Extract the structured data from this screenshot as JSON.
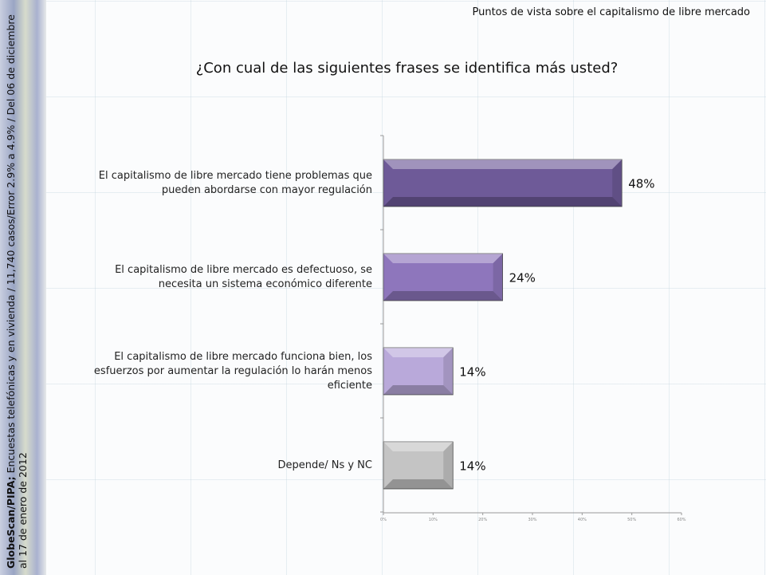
{
  "header": {
    "top_right": "Puntos de vista sobre el capitalismo de libre mercado"
  },
  "sidebar": {
    "source_bold": "GlobeScan/PIPA;",
    "source_text": "Encuestas telefónicas y en vivienda / 11,740  casos/Error 2.9% a 4.9% / Del 06 de diciembre al 17 de enero de 2012"
  },
  "chart_data": {
    "type": "bar",
    "orientation": "horizontal",
    "title": "¿Con cual de las siguientes frases se identifica más usted?",
    "categories": [
      "El capitalismo de libre mercado tiene problemas que pueden abordarse con mayor regulación",
      "El capitalismo de libre mercado es defectuoso, se necesita un sistema económico diferente",
      "El capitalismo de libre mercado funciona bien, los esfuerzos por aumentar la regulación lo harán menos eficiente",
      "Depende/ Ns y NC"
    ],
    "values": [
      48,
      24,
      14,
      14
    ],
    "data_labels": [
      "48%",
      "24%",
      "14%",
      "14%"
    ],
    "xlim": [
      0,
      60
    ],
    "x_ticks": [
      "0%",
      "10%",
      "20%",
      "30%",
      "40%",
      "50%",
      "60%"
    ],
    "colors": [
      "#6e5a98",
      "#8e76bc",
      "#b9a9da",
      "#c4c4c4"
    ],
    "grid": false
  }
}
